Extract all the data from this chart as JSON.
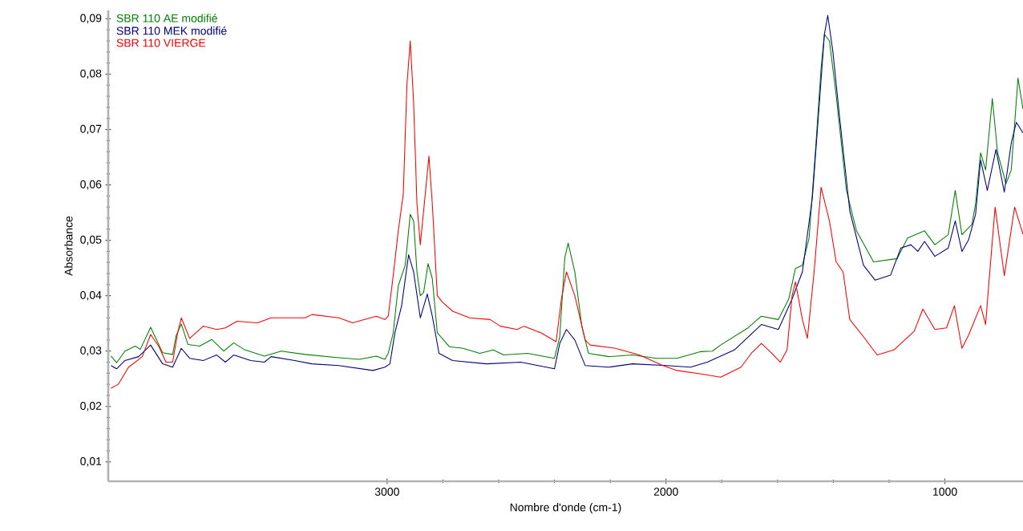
{
  "chart_data": {
    "type": "line",
    "xlabel": "Nombre d'onde (cm-1)",
    "ylabel": "Absorbance",
    "xlim": [
      4000,
      720
    ],
    "ylim": [
      0.0065,
      0.0915
    ],
    "xticks": [
      3000,
      2000,
      1000
    ],
    "yticks": [
      {
        "value": 0.01,
        "label": "0,01"
      },
      {
        "value": 0.02,
        "label": "0,02"
      },
      {
        "value": 0.03,
        "label": "0,03"
      },
      {
        "value": 0.04,
        "label": "0,04"
      },
      {
        "value": 0.05,
        "label": "0,05"
      },
      {
        "value": 0.06,
        "label": "0,06"
      },
      {
        "value": 0.07,
        "label": "0,07"
      },
      {
        "value": 0.08,
        "label": "0,08"
      },
      {
        "value": 0.09,
        "label": "0,09"
      }
    ],
    "legend": "top left",
    "series": [
      {
        "name": "SBR 110 AE modifié",
        "color": "#008000",
        "x": [
          3990,
          3970,
          3940,
          3903,
          3885,
          3848,
          3805,
          3769,
          3757,
          3738,
          3714,
          3672,
          3629,
          3586,
          3550,
          3513,
          3440,
          3380,
          3294,
          3173,
          3100,
          3039,
          3008,
          2996,
          2978,
          2960,
          2935,
          2917,
          2905,
          2893,
          2881,
          2869,
          2853,
          2838,
          2820,
          2777,
          2728,
          2668,
          2619,
          2582,
          2497,
          2400,
          2381,
          2363,
          2351,
          2327,
          2302,
          2278,
          2205,
          2120,
          2034,
          1961,
          1877,
          1834,
          1804,
          1706,
          1658,
          1597,
          1560,
          1536,
          1511,
          1487,
          1463,
          1444,
          1432,
          1414,
          1390,
          1353,
          1317,
          1256,
          1171,
          1134,
          1073,
          1036,
          988,
          963,
          939,
          903,
          890,
          872,
          854,
          830,
          811,
          781,
          762,
          738,
          720
        ],
        "values": [
          0.0291,
          0.0279,
          0.03,
          0.0309,
          0.0303,
          0.0343,
          0.0297,
          0.0294,
          0.0327,
          0.0349,
          0.0312,
          0.0309,
          0.0321,
          0.03,
          0.0315,
          0.0303,
          0.0291,
          0.03,
          0.0294,
          0.0288,
          0.0285,
          0.0291,
          0.0285,
          0.0296,
          0.0333,
          0.0418,
          0.0455,
          0.0547,
          0.0535,
          0.0443,
          0.04,
          0.0406,
          0.0458,
          0.0431,
          0.0333,
          0.0308,
          0.0305,
          0.0296,
          0.0302,
          0.0293,
          0.0296,
          0.0287,
          0.0326,
          0.0468,
          0.0495,
          0.0443,
          0.0345,
          0.0296,
          0.029,
          0.0293,
          0.0287,
          0.0287,
          0.0299,
          0.03,
          0.0311,
          0.0342,
          0.0363,
          0.0357,
          0.0394,
          0.0449,
          0.0455,
          0.0504,
          0.067,
          0.0811,
          0.0872,
          0.086,
          0.0762,
          0.059,
          0.0517,
          0.0461,
          0.0467,
          0.0504,
          0.0517,
          0.0492,
          0.051,
          0.059,
          0.051,
          0.0529,
          0.0566,
          0.0658,
          0.0627,
          0.0756,
          0.0658,
          0.0602,
          0.0627,
          0.0793,
          0.0737
        ]
      },
      {
        "name": "SBR 110 MEK modifié",
        "color": "#000080",
        "x": [
          3990,
          3970,
          3940,
          3891,
          3848,
          3805,
          3769,
          3738,
          3708,
          3659,
          3611,
          3580,
          3550,
          3489,
          3440,
          3416,
          3331,
          3270,
          3173,
          3051,
          3008,
          2990,
          2972,
          2948,
          2923,
          2905,
          2881,
          2856,
          2838,
          2814,
          2765,
          2643,
          2521,
          2400,
          2381,
          2357,
          2327,
          2290,
          2205,
          2120,
          1998,
          1912,
          1852,
          1755,
          1658,
          1597,
          1548,
          1511,
          1475,
          1450,
          1432,
          1420,
          1402,
          1377,
          1341,
          1292,
          1250,
          1195,
          1158,
          1122,
          1097,
          1073,
          1036,
          988,
          963,
          939,
          915,
          890,
          872,
          848,
          817,
          787,
          762,
          744,
          720
        ],
        "values": [
          0.0274,
          0.0268,
          0.0283,
          0.029,
          0.0311,
          0.0277,
          0.0271,
          0.0305,
          0.0287,
          0.0283,
          0.0293,
          0.028,
          0.0293,
          0.0283,
          0.028,
          0.029,
          0.0283,
          0.0277,
          0.0274,
          0.0265,
          0.0271,
          0.0277,
          0.0333,
          0.0382,
          0.0474,
          0.0443,
          0.036,
          0.0403,
          0.0363,
          0.0296,
          0.0283,
          0.0277,
          0.028,
          0.0268,
          0.0314,
          0.0339,
          0.032,
          0.0274,
          0.0271,
          0.0277,
          0.0274,
          0.0271,
          0.028,
          0.0302,
          0.0348,
          0.0339,
          0.0394,
          0.0443,
          0.0578,
          0.0749,
          0.0872,
          0.0906,
          0.0842,
          0.0719,
          0.0553,
          0.0455,
          0.0428,
          0.0437,
          0.0486,
          0.0492,
          0.048,
          0.0498,
          0.0471,
          0.0486,
          0.0535,
          0.048,
          0.0501,
          0.0547,
          0.0645,
          0.059,
          0.0664,
          0.0587,
          0.0676,
          0.0713,
          0.0694
        ]
      },
      {
        "name": "SBR 110 VIERGE",
        "color": "#ff0000",
        "x": [
          3990,
          3964,
          3927,
          3878,
          3848,
          3818,
          3793,
          3769,
          3751,
          3738,
          3708,
          3659,
          3611,
          3580,
          3538,
          3465,
          3416,
          3294,
          3270,
          3173,
          3124,
          3039,
          3008,
          2996,
          2978,
          2960,
          2942,
          2929,
          2917,
          2905,
          2893,
          2881,
          2862,
          2850,
          2838,
          2820,
          2801,
          2765,
          2704,
          2631,
          2594,
          2534,
          2509,
          2448,
          2394,
          2375,
          2357,
          2327,
          2290,
          2272,
          2181,
          2096,
          2011,
          1961,
          1877,
          1804,
          1731,
          1694,
          1658,
          1621,
          1590,
          1566,
          1548,
          1536,
          1511,
          1493,
          1469,
          1444,
          1414,
          1390,
          1365,
          1341,
          1292,
          1243,
          1183,
          1110,
          1079,
          1036,
          994,
          966,
          939,
          915,
          872,
          854,
          842,
          820,
          787,
          750,
          720
        ],
        "values": [
          0.0233,
          0.024,
          0.0271,
          0.029,
          0.033,
          0.0308,
          0.028,
          0.028,
          0.0333,
          0.036,
          0.0323,
          0.0345,
          0.0339,
          0.0342,
          0.0354,
          0.0351,
          0.036,
          0.036,
          0.0366,
          0.036,
          0.0351,
          0.0363,
          0.0357,
          0.0363,
          0.0437,
          0.0517,
          0.0584,
          0.078,
          0.086,
          0.0749,
          0.0566,
          0.0492,
          0.059,
          0.0652,
          0.0566,
          0.04,
          0.0388,
          0.0372,
          0.036,
          0.0357,
          0.0345,
          0.0339,
          0.0345,
          0.0333,
          0.0317,
          0.0394,
          0.0443,
          0.04,
          0.032,
          0.0311,
          0.0305,
          0.0293,
          0.0274,
          0.0265,
          0.0259,
          0.0253,
          0.0271,
          0.0296,
          0.0314,
          0.0296,
          0.028,
          0.0302,
          0.04,
          0.0425,
          0.0357,
          0.0323,
          0.0443,
          0.0596,
          0.0535,
          0.0461,
          0.0443,
          0.0357,
          0.0326,
          0.0293,
          0.0302,
          0.0336,
          0.0376,
          0.0339,
          0.0342,
          0.0382,
          0.0305,
          0.0329,
          0.0382,
          0.0348,
          0.0425,
          0.056,
          0.0436,
          0.056,
          0.0511
        ]
      }
    ]
  }
}
